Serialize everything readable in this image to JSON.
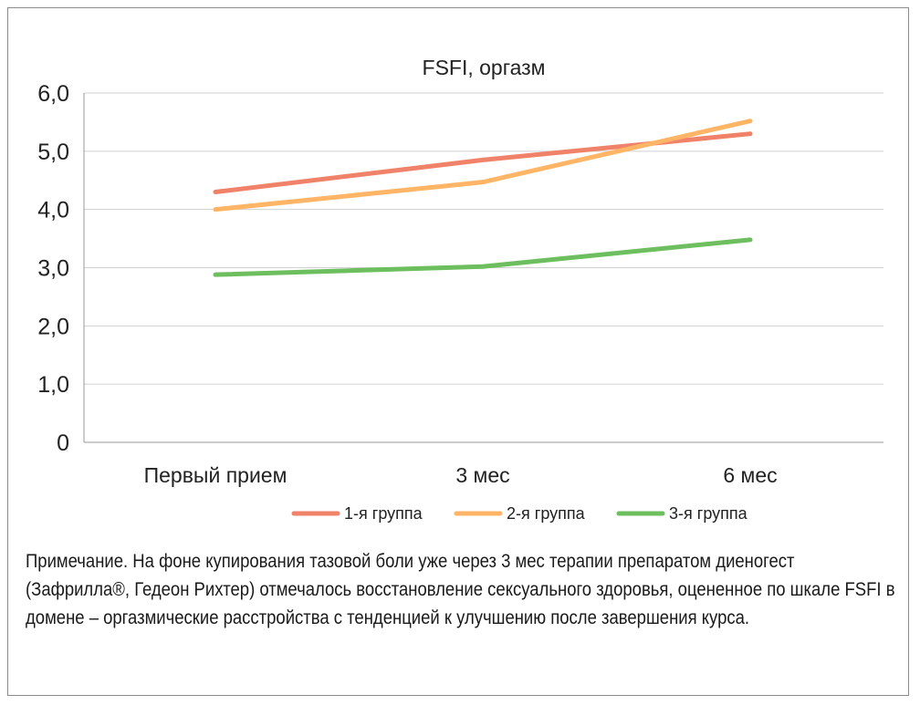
{
  "chart_data": {
    "type": "line",
    "title": "FSFI, оргазм",
    "categories": [
      "Первый прием",
      "3 мес",
      "6 мес"
    ],
    "yticks": [
      "0",
      "1,0",
      "2,0",
      "3,0",
      "4,0",
      "5,0",
      "6,0"
    ],
    "ylim": [
      0,
      6
    ],
    "grid": true,
    "legend_position": "bottom",
    "series": [
      {
        "name": "1-я группа",
        "color": "#F0826A",
        "values": [
          4.3,
          4.85,
          5.3
        ]
      },
      {
        "name": "2-я группа",
        "color": "#FFB565",
        "values": [
          4.0,
          4.47,
          5.52
        ]
      },
      {
        "name": "3-я группа",
        "color": "#6DBE5E",
        "values": [
          2.88,
          3.02,
          3.48
        ]
      }
    ]
  },
  "note": "Примечание. На фоне купирования тазовой боли уже через 3 мес терапии препаратом диеногест (Зафрилла®, Гедеон Рихтер) отмечалось восстановление сексуального здоровья, оцененное по шкале FSFI в домене – оргазмические расстройства с тенденцией к улучшению после завершения курса."
}
